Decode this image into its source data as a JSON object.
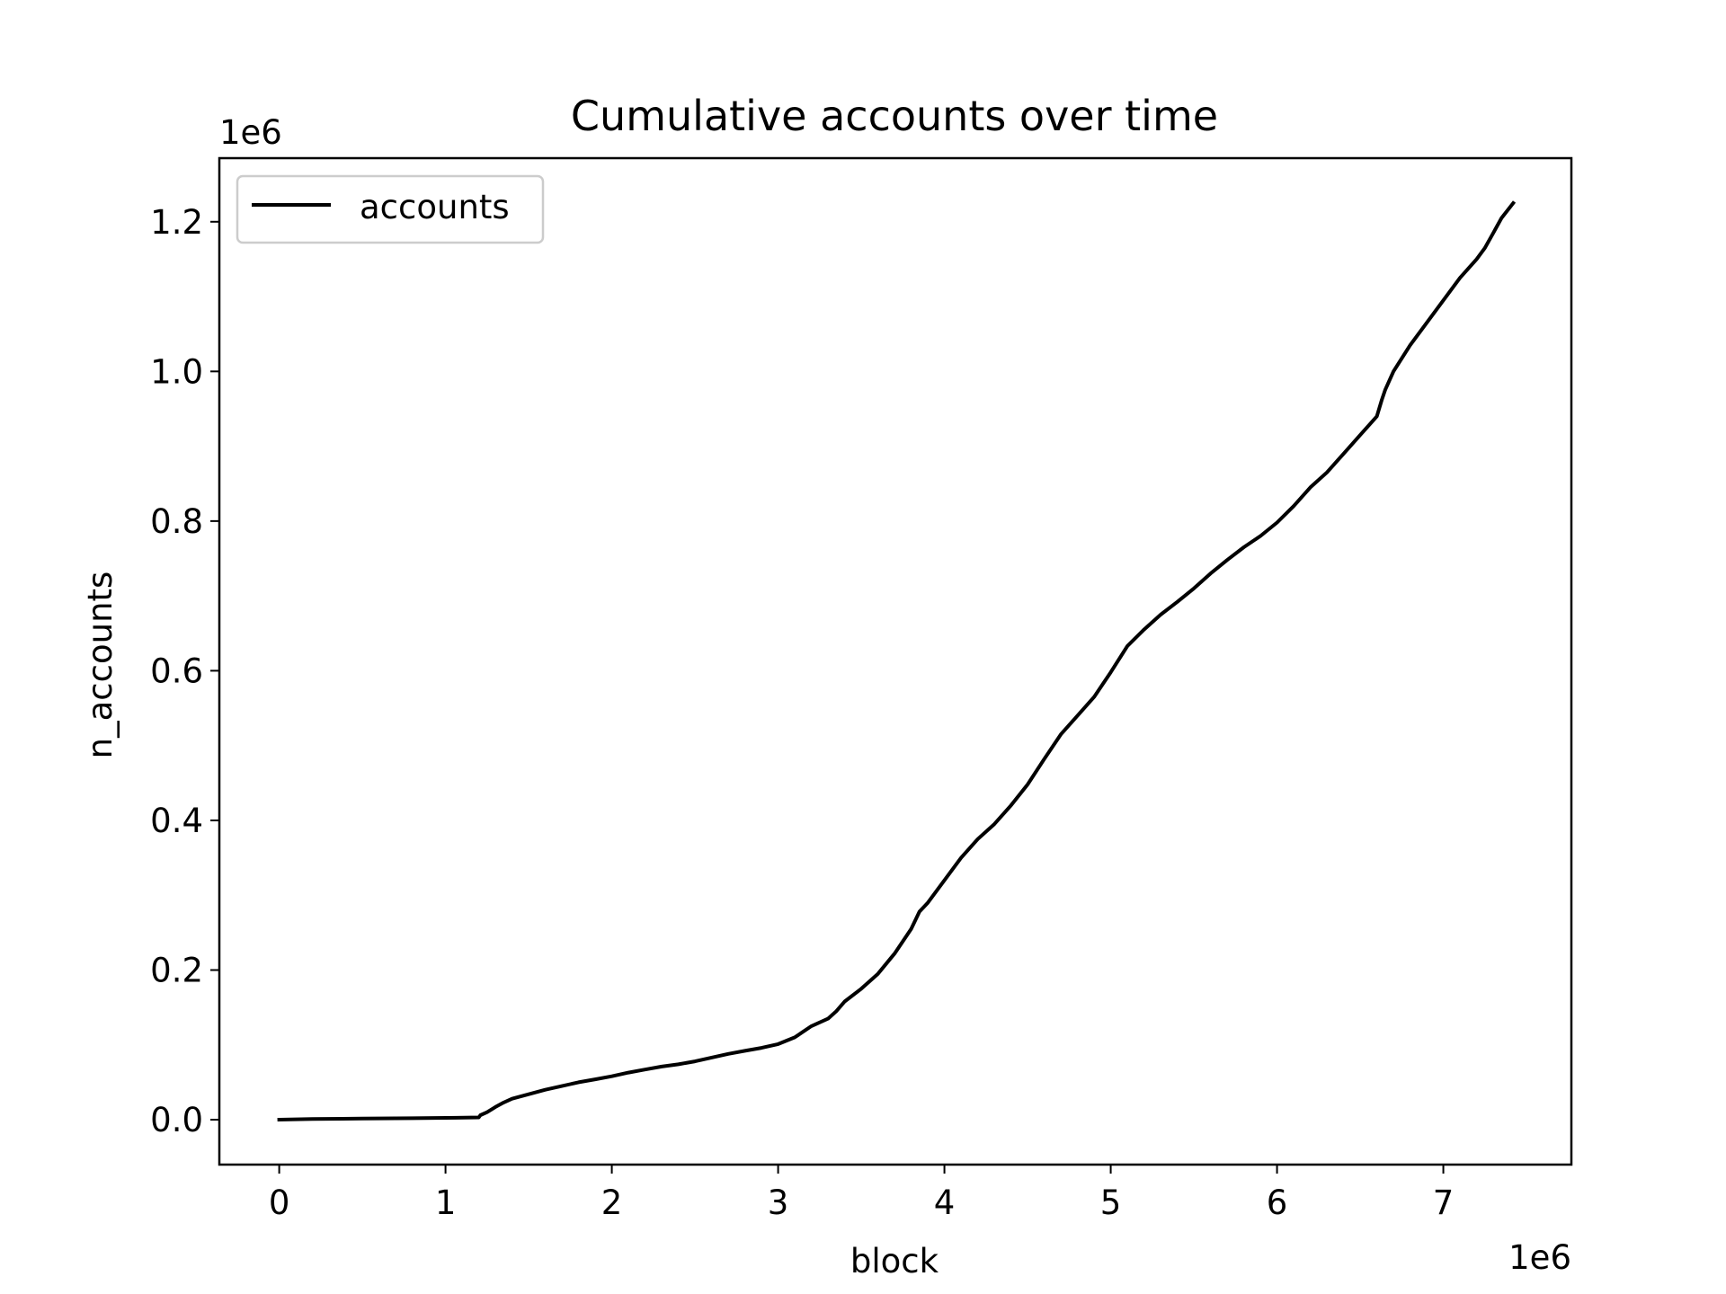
{
  "chart_data": {
    "type": "line",
    "title": "Cumulative accounts over time",
    "xlabel": "block",
    "ylabel": "n_accounts",
    "x_offset_label": "1e6",
    "y_offset_label": "1e6",
    "xlim": [
      -360000,
      7770000
    ],
    "ylim": [
      -60000,
      1285000
    ],
    "xticks": [
      0,
      1000000,
      2000000,
      3000000,
      4000000,
      5000000,
      6000000,
      7000000
    ],
    "xtick_labels": [
      "0",
      "1",
      "2",
      "3",
      "4",
      "5",
      "6",
      "7"
    ],
    "yticks": [
      0,
      200000,
      400000,
      600000,
      800000,
      1000000,
      1200000
    ],
    "ytick_labels": [
      "0.0",
      "0.2",
      "0.4",
      "0.6",
      "0.8",
      "1.0",
      "1.2"
    ],
    "grid": false,
    "legend": "upper left",
    "series": [
      {
        "name": "accounts",
        "color": "#000000",
        "x": [
          0,
          200000,
          500000,
          800000,
          1000000,
          1200000,
          1210000,
          1250000,
          1300000,
          1350000,
          1400000,
          1500000,
          1600000,
          1700000,
          1800000,
          1900000,
          2000000,
          2100000,
          2200000,
          2300000,
          2400000,
          2500000,
          2600000,
          2700000,
          2800000,
          2900000,
          3000000,
          3100000,
          3200000,
          3300000,
          3350000,
          3400000,
          3500000,
          3600000,
          3700000,
          3800000,
          3850000,
          3900000,
          4000000,
          4100000,
          4200000,
          4300000,
          4400000,
          4500000,
          4600000,
          4700000,
          4800000,
          4900000,
          5000000,
          5100000,
          5200000,
          5300000,
          5400000,
          5500000,
          5600000,
          5700000,
          5800000,
          5900000,
          6000000,
          6100000,
          6200000,
          6300000,
          6400000,
          6500000,
          6600000,
          6630000,
          6650000,
          6700000,
          6800000,
          6900000,
          7000000,
          7100000,
          7200000,
          7250000,
          7300000,
          7350000,
          7420000
        ],
        "y": [
          0,
          1000,
          1500,
          2000,
          2500,
          3000,
          6000,
          10000,
          17000,
          23000,
          28000,
          34000,
          40000,
          45000,
          50000,
          54000,
          58000,
          63000,
          67000,
          71000,
          74000,
          78000,
          83000,
          88000,
          92000,
          96000,
          101000,
          110000,
          125000,
          135000,
          145000,
          158000,
          175000,
          195000,
          222000,
          255000,
          278000,
          290000,
          320000,
          350000,
          375000,
          395000,
          420000,
          448000,
          482000,
          515000,
          540000,
          565000,
          598000,
          633000,
          655000,
          675000,
          692000,
          710000,
          730000,
          748000,
          765000,
          780000,
          798000,
          820000,
          845000,
          865000,
          890000,
          915000,
          940000,
          962000,
          975000,
          1000000,
          1035000,
          1065000,
          1095000,
          1125000,
          1150000,
          1165000,
          1185000,
          1205000,
          1225000
        ]
      }
    ]
  }
}
